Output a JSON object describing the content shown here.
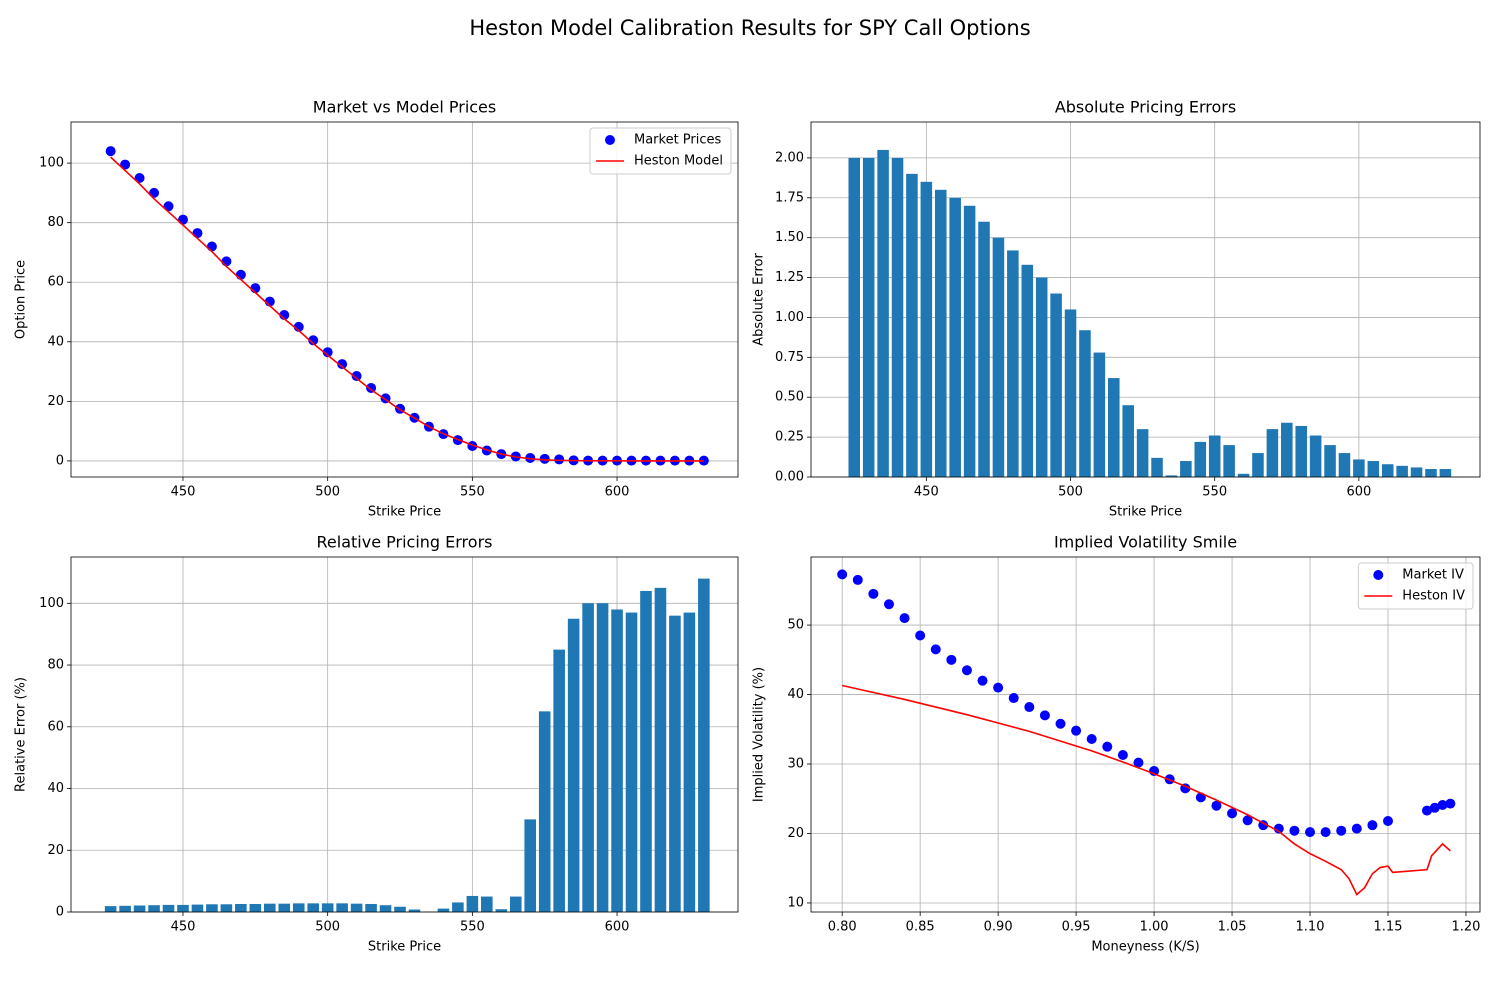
{
  "title": "Heston Model Calibration Results for SPY Call Options",
  "chart_data": [
    {
      "type": "line",
      "title": "Market vs Model Prices",
      "xlabel": "Strike Price",
      "ylabel": "Option Price",
      "x": [
        425,
        430,
        435,
        440,
        445,
        450,
        455,
        460,
        465,
        470,
        475,
        480,
        485,
        490,
        495,
        500,
        505,
        510,
        515,
        520,
        525,
        530,
        535,
        540,
        545,
        550,
        555,
        560,
        565,
        570,
        575,
        580,
        585,
        590,
        595,
        600,
        605,
        610,
        615,
        620,
        625,
        630
      ],
      "series": [
        {
          "name": "Market Prices",
          "mode": "markers",
          "color": "#0000ff",
          "values": [
            104,
            99.5,
            95,
            90,
            85.5,
            81,
            76.5,
            72,
            67,
            62.5,
            58,
            53.5,
            49,
            45,
            40.5,
            36.5,
            32.5,
            28.5,
            24.5,
            21,
            17.5,
            14.5,
            11.5,
            9,
            7,
            5,
            3.5,
            2.3,
            1.5,
            1,
            0.7,
            0.5,
            0.2,
            0.1,
            0.1,
            0.1,
            0.1,
            0.1,
            0.1,
            0.1,
            0.1,
            0.1
          ]
        },
        {
          "name": "Heston Model",
          "mode": "lines",
          "color": "#ff0000",
          "values": [
            102,
            97.5,
            93,
            88,
            83.6,
            79.2,
            74.7,
            70.3,
            65.3,
            60.9,
            56.5,
            52.1,
            47.7,
            43.8,
            39.4,
            35.5,
            31.6,
            27.7,
            23.9,
            20.6,
            17.2,
            14.4,
            11.5,
            9.1,
            7.2,
            5.3,
            3.7,
            2.3,
            1.35,
            0.7,
            0.36,
            0.18,
            0.1,
            0.05,
            0.03,
            0.02,
            0.01,
            0.01,
            0.01,
            0,
            0,
            0
          ]
        }
      ],
      "xlim": [
        411.3,
        641.8
      ],
      "ylim": [
        -5.4,
        113.8
      ],
      "xticks": [
        450,
        500,
        550,
        600
      ],
      "yticks": [
        0,
        20,
        40,
        60,
        80,
        100
      ],
      "grid": true,
      "legend": "upper right"
    },
    {
      "type": "bar",
      "title": "Absolute Pricing Errors",
      "xlabel": "Strike Price",
      "ylabel": "Absolute Error",
      "color": "#1f77b4",
      "x": [
        425,
        430,
        435,
        440,
        445,
        450,
        455,
        460,
        465,
        470,
        475,
        480,
        485,
        490,
        495,
        500,
        505,
        510,
        515,
        520,
        525,
        530,
        535,
        540,
        545,
        550,
        555,
        560,
        565,
        570,
        575,
        580,
        585,
        590,
        595,
        600,
        605,
        610,
        615,
        620,
        625,
        630
      ],
      "values": [
        2.0,
        2.0,
        2.05,
        2.0,
        1.9,
        1.85,
        1.8,
        1.75,
        1.7,
        1.6,
        1.5,
        1.42,
        1.33,
        1.25,
        1.15,
        1.05,
        0.92,
        0.78,
        0.62,
        0.45,
        0.3,
        0.12,
        0.01,
        0.1,
        0.22,
        0.26,
        0.2,
        0.02,
        0.15,
        0.3,
        0.34,
        0.32,
        0.26,
        0.2,
        0.15,
        0.11,
        0.1,
        0.08,
        0.07,
        0.06,
        0.05,
        0.05
      ],
      "xlim": [
        410,
        642
      ],
      "ylim": [
        0,
        2.225
      ],
      "xticks": [
        450,
        500,
        550,
        600
      ],
      "yticks": [
        {
          "value": 0,
          "label": "0.00"
        },
        {
          "value": 0.25,
          "label": "0.25"
        },
        {
          "value": 0.5,
          "label": "0.50"
        },
        {
          "value": 0.75,
          "label": "0.75"
        },
        {
          "value": 1,
          "label": "1.00"
        },
        {
          "value": 1.25,
          "label": "1.25"
        },
        {
          "value": 1.5,
          "label": "1.50"
        },
        {
          "value": 1.75,
          "label": "1.75"
        },
        {
          "value": 2,
          "label": "2.00"
        }
      ],
      "grid": true
    },
    {
      "type": "bar",
      "title": "Relative Pricing Errors",
      "xlabel": "Strike Price",
      "ylabel": "Relative Error (%)",
      "color": "#1f77b4",
      "x": [
        425,
        430,
        435,
        440,
        445,
        450,
        455,
        460,
        465,
        470,
        475,
        480,
        485,
        490,
        495,
        500,
        505,
        510,
        515,
        520,
        525,
        530,
        535,
        540,
        545,
        550,
        555,
        560,
        565,
        570,
        575,
        580,
        585,
        590,
        595,
        600,
        605,
        610,
        615,
        620,
        625,
        630
      ],
      "values": [
        1.9,
        2.0,
        2.1,
        2.2,
        2.3,
        2.3,
        2.4,
        2.5,
        2.5,
        2.6,
        2.6,
        2.7,
        2.7,
        2.8,
        2.8,
        2.8,
        2.8,
        2.7,
        2.6,
        2.2,
        1.7,
        0.8,
        0.1,
        1.1,
        3.1,
        5.2,
        5.0,
        0.9,
        5,
        30,
        65,
        85,
        95,
        100,
        100,
        98,
        97,
        104,
        105,
        96,
        97,
        108
      ],
      "xlim": [
        411.3,
        641.8
      ],
      "ylim": [
        0,
        115
      ],
      "xticks": [
        450,
        500,
        550,
        600
      ],
      "yticks": [
        0,
        20,
        40,
        60,
        80,
        100
      ],
      "grid": true
    },
    {
      "type": "line",
      "title": "Implied Volatility Smile",
      "xlabel": "Moneyness (K/S)",
      "ylabel": "Implied Volatility (%)",
      "series": [
        {
          "name": "Market IV",
          "mode": "markers",
          "color": "#0000ff",
          "x": [
            0.8,
            0.81,
            0.82,
            0.83,
            0.84,
            0.85,
            0.86,
            0.87,
            0.88,
            0.89,
            0.9,
            0.91,
            0.92,
            0.93,
            0.94,
            0.95,
            0.96,
            0.97,
            0.98,
            0.99,
            1.0,
            1.01,
            1.02,
            1.03,
            1.04,
            1.05,
            1.06,
            1.07,
            1.08,
            1.09,
            1.1,
            1.11,
            1.12,
            1.13,
            1.14,
            1.15,
            1.175,
            1.18,
            1.185,
            1.19
          ],
          "values": [
            57.3,
            56.5,
            54.5,
            53,
            51,
            48.5,
            46.5,
            45,
            43.5,
            42,
            41,
            39.5,
            38.2,
            37,
            35.8,
            34.8,
            33.6,
            32.5,
            31.3,
            30.2,
            29.0,
            27.8,
            26.5,
            25.2,
            24.0,
            22.9,
            21.9,
            21.2,
            20.7,
            20.4,
            20.2,
            20.2,
            20.4,
            20.7,
            21.2,
            21.8,
            23.3,
            23.7,
            24.1,
            24.3
          ]
        },
        {
          "name": "Heston IV",
          "mode": "lines",
          "color": "#ff0000",
          "x": [
            0.8,
            0.82,
            0.84,
            0.86,
            0.88,
            0.9,
            0.92,
            0.94,
            0.96,
            0.98,
            1.0,
            1.02,
            1.04,
            1.06,
            1.08,
            1.09,
            1.1,
            1.11,
            1.12,
            1.125,
            1.13,
            1.135,
            1.14,
            1.145,
            1.15,
            1.153,
            1.175,
            1.178,
            1.185,
            1.19
          ],
          "values": [
            41.3,
            40.3,
            39.3,
            38.2,
            37.1,
            35.9,
            34.7,
            33.3,
            31.9,
            30.3,
            28.6,
            26.8,
            24.8,
            22.7,
            20.3,
            18.5,
            17.1,
            16.0,
            14.8,
            13.5,
            11.2,
            12.2,
            14.2,
            15.1,
            15.3,
            14.4,
            14.8,
            16.8,
            18.5,
            17.5
          ]
        }
      ],
      "xlim": [
        0.78,
        1.209
      ],
      "ylim": [
        8.7,
        59.8
      ],
      "xticks": [
        {
          "value": 0.8,
          "label": "0.80"
        },
        {
          "value": 0.85,
          "label": "0.85"
        },
        {
          "value": 0.9,
          "label": "0.90"
        },
        {
          "value": 0.95,
          "label": "0.95"
        },
        {
          "value": 1,
          "label": "1.00"
        },
        {
          "value": 1.05,
          "label": "1.05"
        },
        {
          "value": 1.1,
          "label": "1.10"
        },
        {
          "value": 1.15,
          "label": "1.15"
        },
        {
          "value": 1.2,
          "label": "1.20"
        }
      ],
      "yticks": [
        10,
        20,
        30,
        40,
        50
      ],
      "grid": true,
      "legend": "upper right"
    }
  ]
}
